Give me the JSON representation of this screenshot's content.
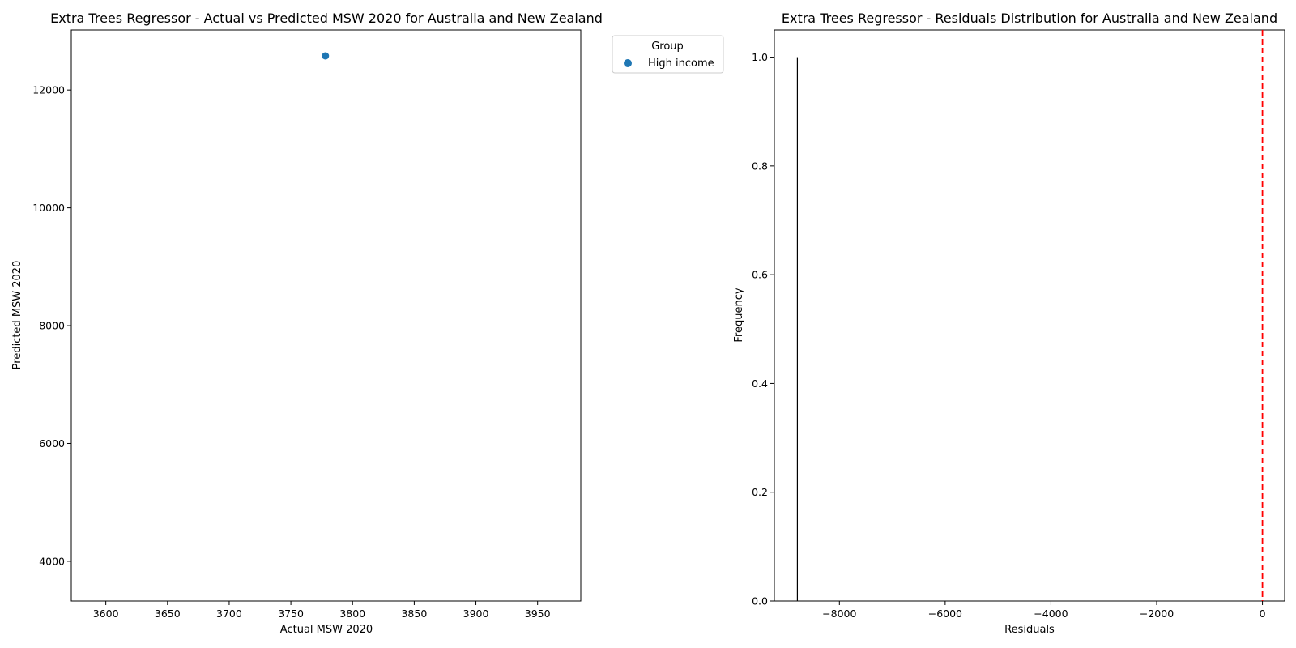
{
  "chart_data": [
    {
      "type": "scatter",
      "title": "Extra Trees Regressor - Actual vs Predicted MSW 2020 for Australia and New Zealand",
      "xlabel": "Actual MSW 2020",
      "ylabel": "Predicted MSW 2020",
      "xlim": [
        3572,
        3985
      ],
      "ylim": [
        3325,
        13020
      ],
      "xticks": [
        3600,
        3650,
        3700,
        3750,
        3800,
        3850,
        3900,
        3950
      ],
      "yticks": [
        4000,
        6000,
        8000,
        10000,
        12000
      ],
      "grid": false,
      "legend": {
        "title": "Group",
        "placement": "outside-top-right",
        "entries": [
          "High income"
        ]
      },
      "series": [
        {
          "name": "High income",
          "color": "#1f77b4",
          "points": [
            {
              "x": 3778,
              "y": 12580
            }
          ]
        }
      ]
    },
    {
      "type": "bar",
      "title": "Extra Trees Regressor - Residuals Distribution for Australia and New Zealand",
      "xlabel": "Residuals",
      "ylabel": "Frequency",
      "xlim": [
        -9230,
        420
      ],
      "ylim": [
        0,
        1.05
      ],
      "xticks": [
        -8000,
        -6000,
        -4000,
        -2000,
        0
      ],
      "yticks": [
        0.0,
        0.2,
        0.4,
        0.6,
        0.8,
        1.0
      ],
      "grid": false,
      "bars": [
        {
          "x": -8800,
          "width": 8,
          "value": 1.0
        }
      ],
      "bar_color": "#000000",
      "reference_line": {
        "x": 0,
        "color": "#ff0000",
        "style": "dashed"
      }
    }
  ]
}
